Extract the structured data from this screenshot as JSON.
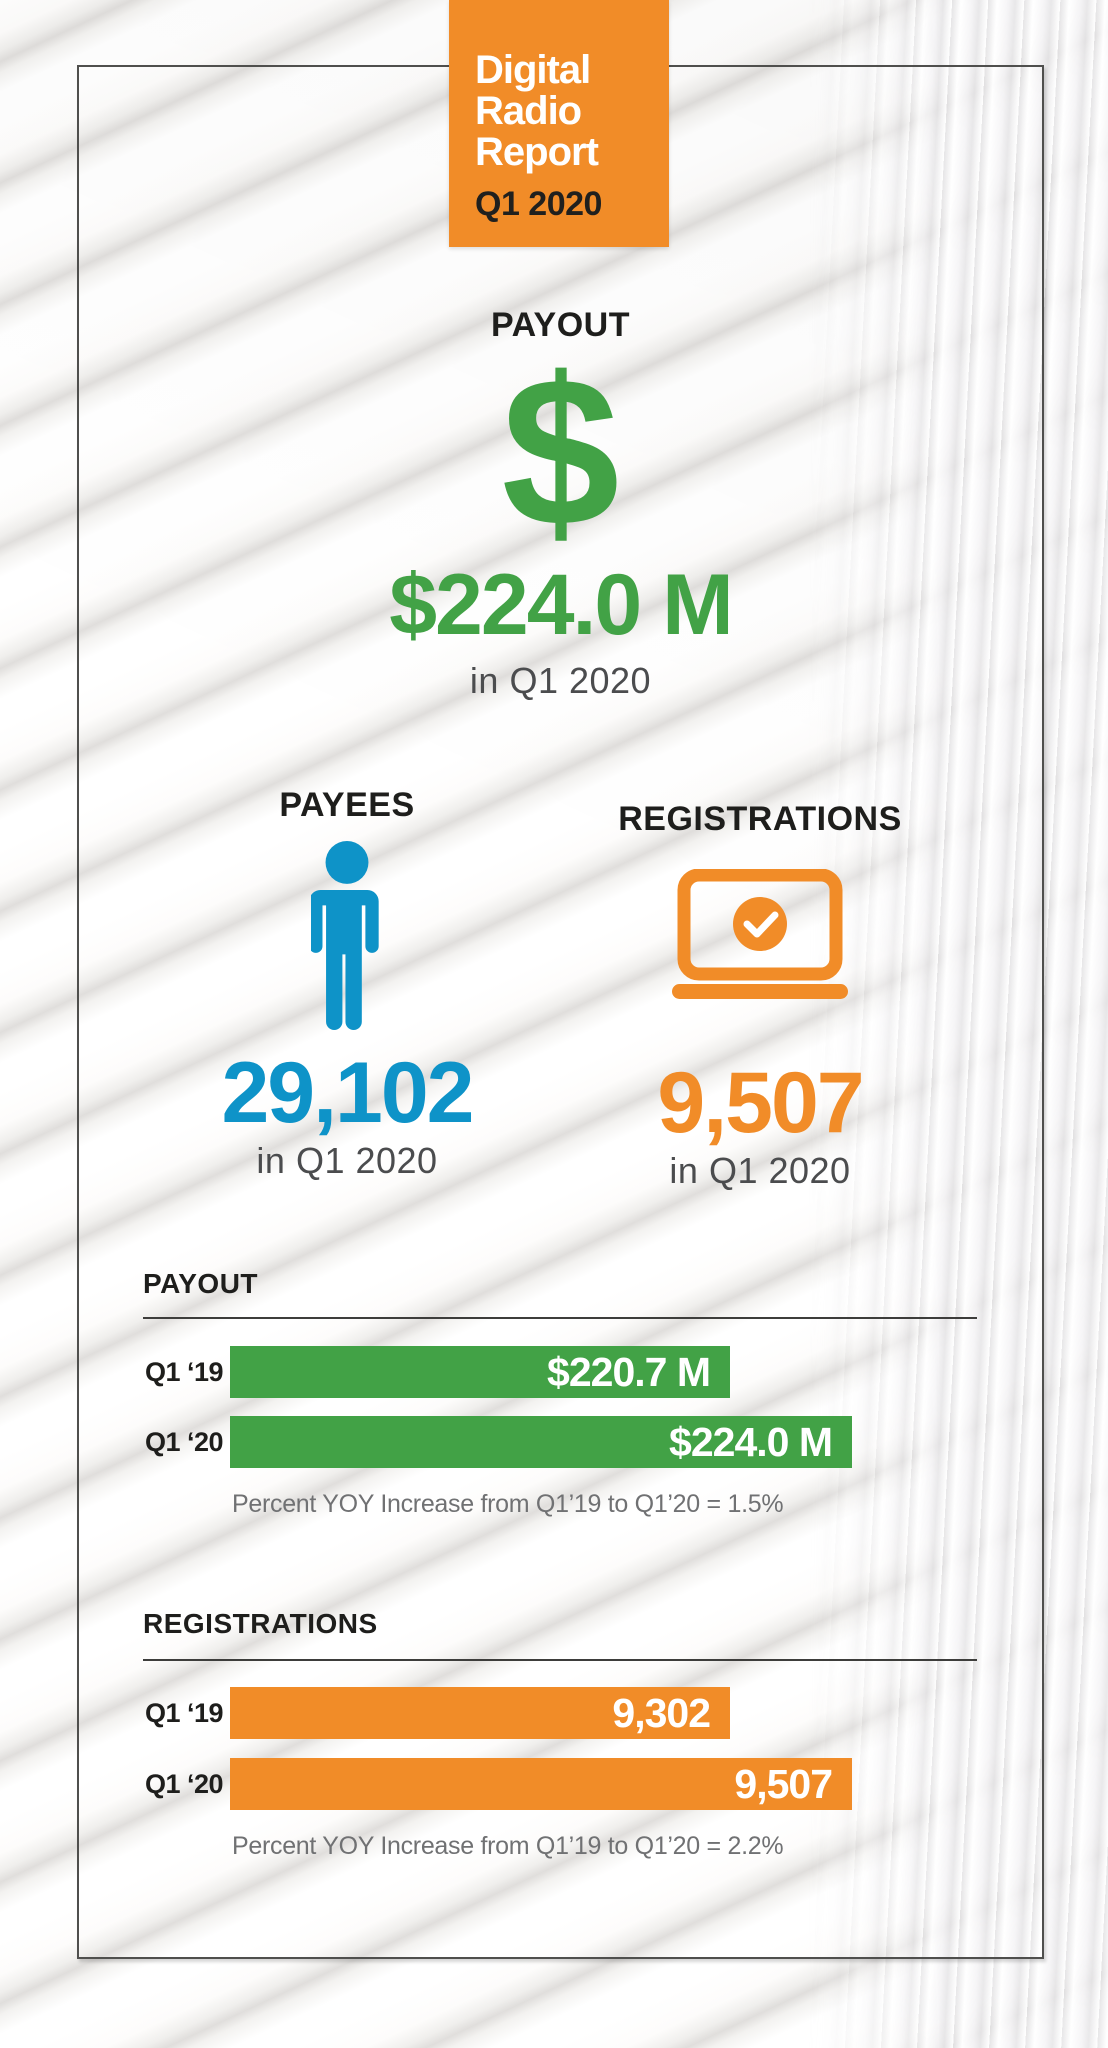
{
  "badge": {
    "title_lines": [
      "Digital",
      "Radio",
      "Report"
    ],
    "subtitle": "Q1 2020",
    "bg": "#F18C28"
  },
  "stats": {
    "payout": {
      "heading": "PAYOUT",
      "symbol": "$",
      "value": "$224.0 M",
      "period": "in Q1 2020",
      "color": "#42A246"
    },
    "payees": {
      "heading": "PAYEES",
      "value": "29,102",
      "period": "in Q1 2020",
      "color": "#0E93C8"
    },
    "registrations": {
      "heading": "REGISTRATIONS",
      "value": "9,507",
      "period": "in Q1 2020",
      "color": "#F18C28"
    }
  },
  "chart_data": [
    {
      "type": "bar",
      "orientation": "horizontal",
      "title": "PAYOUT",
      "categories": [
        "Q1 ‘19",
        "Q1 ‘20"
      ],
      "values": [
        220.7,
        224.0
      ],
      "labels": [
        "$220.7 M",
        "$224.0 M"
      ],
      "unit": "$M",
      "xlim": [
        207.2,
        224.0
      ],
      "note": "Percent YOY Increase from Q1’19 to Q1’20 = 1.5%",
      "yoy_increase_pct": 1.5,
      "color": "#42A246",
      "grid": false,
      "legend": "none"
    },
    {
      "type": "bar",
      "orientation": "horizontal",
      "title": "REGISTRATIONS",
      "categories": [
        "Q1 ‘19",
        "Q1 ‘20"
      ],
      "values": [
        9302,
        9507
      ],
      "labels": [
        "9,302",
        "9,507"
      ],
      "unit": "registrations",
      "xlim": [
        8462,
        9507
      ],
      "note": "Percent YOY Increase from Q1’19 to Q1’20 = 2.2%",
      "yoy_increase_pct": 2.2,
      "color": "#F18C28",
      "grid": false,
      "legend": "none"
    }
  ],
  "colors": {
    "orange": "#F18C28",
    "green": "#42A246",
    "blue": "#0E93C8",
    "heading_text": "#1E1E1C",
    "period_text": "#4B4C4E",
    "note_text": "#707173",
    "frame_border": "#4F4F4D",
    "bar_value_text": "#FFFFFF"
  }
}
